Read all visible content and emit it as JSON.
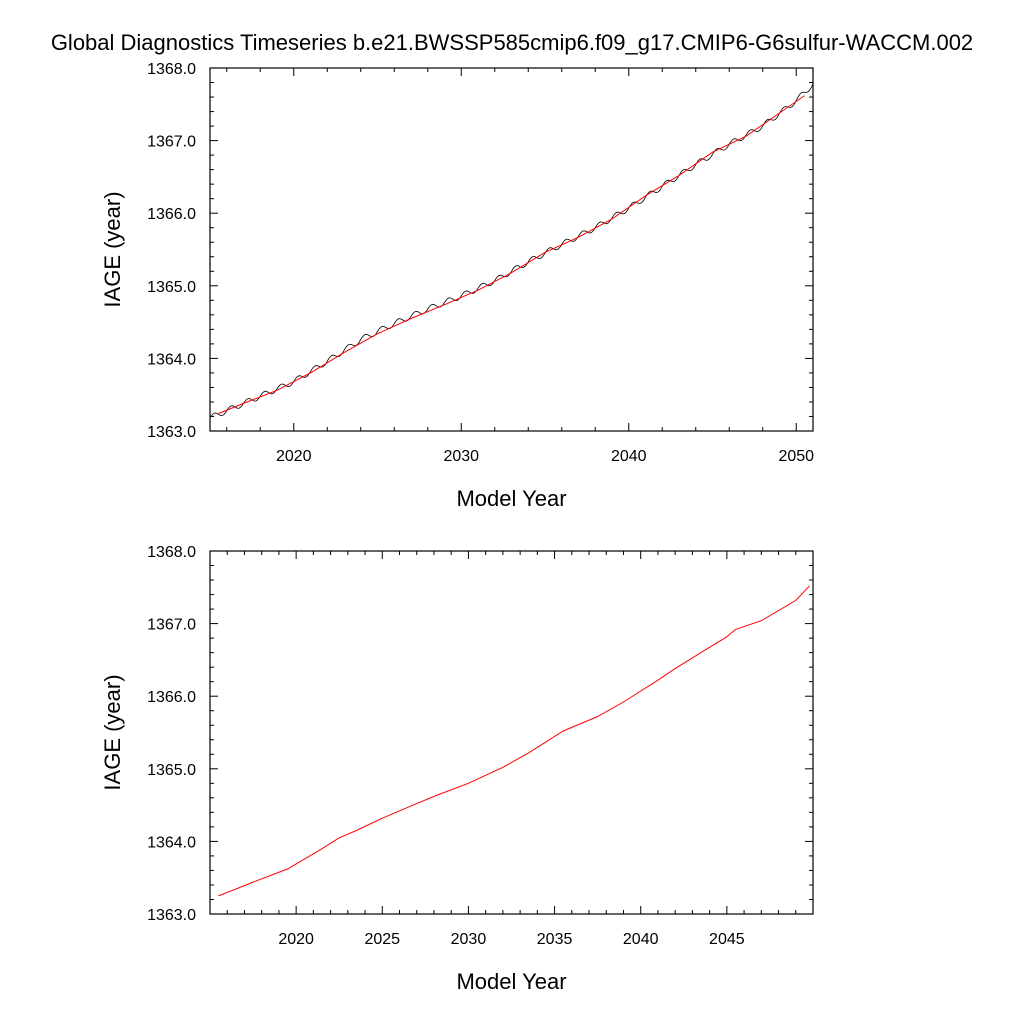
{
  "title": "Global Diagnostics Timeseries b.e21.BWSSP585cmip6.f09_g17.CMIP6-G6sulfur-WACCM.002",
  "colors": {
    "raw": "#000000",
    "smoothed": "#ff0000",
    "frame": "#000000"
  },
  "chart_data": [
    {
      "type": "line",
      "xlabel": "Model Year",
      "ylabel": "IAGE (year)",
      "xlim": [
        2015,
        2051
      ],
      "ylim": [
        1363.0,
        1368.0
      ],
      "xticks": [
        2020,
        2030,
        2040,
        2050
      ],
      "xtick_labels": [
        "2020",
        "2030",
        "2040",
        "2050"
      ],
      "yticks": [
        1363.0,
        1364.0,
        1365.0,
        1366.0,
        1367.0,
        1368.0
      ],
      "ytick_labels": [
        "1363.0",
        "1364.0",
        "1365.0",
        "1366.0",
        "1367.0",
        "1368.0"
      ],
      "grid": false,
      "series": [
        {
          "style": "monthly, seasonal oscillation",
          "color": "#000000",
          "x": [
            2015.0,
            2016,
            2018,
            2020,
            2022,
            2024,
            2026,
            2028,
            2030,
            2032,
            2034,
            2036,
            2038,
            2040,
            2042,
            2044,
            2046,
            2048,
            2050,
            2051
          ],
          "values": [
            1363.18,
            1363.28,
            1363.48,
            1363.68,
            1363.96,
            1364.26,
            1364.48,
            1364.68,
            1364.86,
            1365.07,
            1365.33,
            1365.57,
            1365.8,
            1366.07,
            1366.37,
            1366.67,
            1366.95,
            1367.2,
            1367.55,
            1367.78
          ],
          "seasonal_amplitude": 0.04
        },
        {
          "style": "annual mean",
          "color": "#ff0000",
          "x": [
            2015.5,
            2017,
            2019,
            2021,
            2023,
            2025,
            2027,
            2029,
            2031,
            2033,
            2035,
            2037,
            2039,
            2041,
            2043,
            2045,
            2047,
            2049,
            2050.5
          ],
          "values": [
            1363.24,
            1363.38,
            1363.56,
            1363.8,
            1364.08,
            1364.34,
            1364.55,
            1364.74,
            1364.94,
            1365.18,
            1365.46,
            1365.67,
            1365.92,
            1366.24,
            1366.52,
            1366.84,
            1367.06,
            1367.38,
            1367.62
          ]
        }
      ]
    },
    {
      "type": "line",
      "xlabel": "Model Year",
      "ylabel": "IAGE (year)",
      "xlim": [
        2015,
        2050
      ],
      "ylim": [
        1363.0,
        1368.0
      ],
      "xticks": [
        2020,
        2025,
        2030,
        2035,
        2040,
        2045
      ],
      "xtick_labels": [
        "2020",
        "2025",
        "2030",
        "2035",
        "2040",
        "2045"
      ],
      "yticks": [
        1363.0,
        1364.0,
        1365.0,
        1366.0,
        1367.0,
        1368.0
      ],
      "ytick_labels": [
        "1363.0",
        "1364.0",
        "1365.0",
        "1366.0",
        "1367.0",
        "1368.0"
      ],
      "grid": false,
      "series": [
        {
          "style": "annual mean",
          "color": "#ff0000",
          "x": [
            2015.5,
            2017.5,
            2019.5,
            2021.5,
            2022.5,
            2023.5,
            2025.0,
            2027.0,
            2028.0,
            2030.0,
            2032.0,
            2033.5,
            2035.5,
            2037.5,
            2039.0,
            2041.0,
            2042.0,
            2043.5,
            2045.0,
            2045.5,
            2047.0,
            2049.0,
            2049.8
          ],
          "values": [
            1363.25,
            1363.44,
            1363.62,
            1363.9,
            1364.05,
            1364.15,
            1364.32,
            1364.52,
            1364.62,
            1364.8,
            1365.02,
            1365.22,
            1365.52,
            1365.72,
            1365.92,
            1366.22,
            1366.38,
            1366.6,
            1366.82,
            1366.92,
            1367.04,
            1367.32,
            1367.52
          ]
        }
      ]
    }
  ]
}
